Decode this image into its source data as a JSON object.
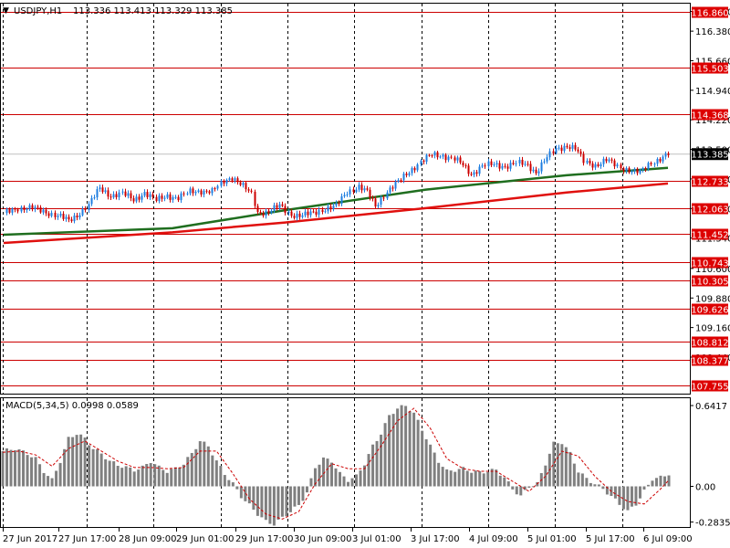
{
  "colors": {
    "background": "#ffffff",
    "frame": "#000000",
    "grid": "#000000",
    "level_line": "#cc0000",
    "level_label_bg": "#dd0000",
    "level_label_text": "#ffffff",
    "bull_candle": "#1e7ee0",
    "bear_candle": "#cc0000",
    "ma_slow": "#e0100e",
    "ma_fast": "#1f6e1f",
    "macd_bar": "#808080",
    "macd_signal": "#cc0000",
    "current_price_bg": "#000000",
    "current_price_text": "#ffffff"
  },
  "chart_data": [
    {
      "type": "candlestick",
      "title": "USDJPY,H1",
      "ohlc_header": "113.336 113.413 113.329 113.385",
      "symbol": "USDJPY",
      "timeframe": "H1",
      "current_price": "113.385",
      "ylim": [
        107.55,
        117.05
      ],
      "y_ticks": [
        "116.860",
        "116.380",
        "115.660",
        "114.940",
        "114.220",
        "113.500",
        "112.780",
        "112.060",
        "111.340",
        "110.600",
        "109.880",
        "109.160",
        "108.440"
      ],
      "price_levels": [
        "116.860",
        "115.503",
        "114.368",
        "112.733",
        "112.063",
        "111.452",
        "110.743",
        "110.305",
        "109.626",
        "108.812",
        "108.377",
        "107.755"
      ],
      "x_tick_labels": [
        "27 Jun 2017",
        "27 Jun 17:00",
        "28 Jun 09:00",
        "29 Jun 01:00",
        "29 Jun 17:00",
        "30 Jun 09:00",
        "3 Jul 01:00",
        "3 Jul 17:00",
        "4 Jul 09:00",
        "5 Jul 01:00",
        "5 Jul 17:00",
        "6 Jul 09:00"
      ],
      "close_path": [
        [
          0,
          111.95
        ],
        [
          5,
          112.08
        ],
        [
          10,
          112.06
        ],
        [
          15,
          111.98
        ],
        [
          20,
          111.86
        ],
        [
          23,
          111.75
        ],
        [
          26,
          111.9
        ],
        [
          30,
          112.15
        ],
        [
          34,
          112.55
        ],
        [
          38,
          112.38
        ],
        [
          42,
          112.42
        ],
        [
          46,
          112.27
        ],
        [
          50,
          112.45
        ],
        [
          54,
          112.25
        ],
        [
          58,
          112.38
        ],
        [
          62,
          112.32
        ],
        [
          66,
          112.46
        ],
        [
          70,
          112.5
        ],
        [
          74,
          112.47
        ],
        [
          78,
          112.72
        ],
        [
          81,
          112.84
        ],
        [
          84,
          112.66
        ],
        [
          88,
          112.4
        ],
        [
          90,
          111.97
        ],
        [
          94,
          111.98
        ],
        [
          98,
          112.12
        ],
        [
          102,
          111.92
        ],
        [
          106,
          111.88
        ],
        [
          110,
          111.95
        ],
        [
          114,
          112.06
        ],
        [
          118,
          112.11
        ],
        [
          122,
          112.47
        ],
        [
          126,
          112.6
        ],
        [
          129,
          112.45
        ],
        [
          132,
          112.12
        ],
        [
          136,
          112.48
        ],
        [
          140,
          112.7
        ],
        [
          144,
          112.97
        ],
        [
          148,
          113.2
        ],
        [
          152,
          113.36
        ],
        [
          156,
          113.36
        ],
        [
          160,
          113.26
        ],
        [
          163,
          113.11
        ],
        [
          166,
          112.9
        ],
        [
          170,
          113.1
        ],
        [
          174,
          113.12
        ],
        [
          178,
          113.1
        ],
        [
          182,
          113.16
        ],
        [
          186,
          113.11
        ],
        [
          189,
          112.95
        ],
        [
          192,
          113.22
        ],
        [
          196,
          113.5
        ],
        [
          200,
          113.6
        ],
        [
          203,
          113.52
        ],
        [
          206,
          113.2
        ],
        [
          210,
          113.12
        ],
        [
          214,
          113.24
        ],
        [
          218,
          113.08
        ],
        [
          222,
          113.01
        ],
        [
          226,
          112.93
        ],
        [
          230,
          113.18
        ],
        [
          234,
          113.32
        ],
        [
          236,
          113.385
        ]
      ],
      "moving_averages": [
        {
          "color": "ma_fast",
          "points": [
            [
              0,
              111.42
            ],
            [
              60,
              111.58
            ],
            [
              100,
              112.02
            ],
            [
              150,
              112.52
            ],
            [
              200,
              112.87
            ],
            [
              236,
              113.05
            ]
          ]
        },
        {
          "color": "ma_slow",
          "points": [
            [
              0,
              111.22
            ],
            [
              60,
              111.48
            ],
            [
              100,
              111.72
            ],
            [
              150,
              112.07
            ],
            [
              200,
              112.45
            ],
            [
              236,
              112.67
            ]
          ]
        }
      ]
    },
    {
      "type": "bar",
      "title": "MACD(5,34,5) 0.0998 0.0589",
      "ylim": [
        -0.33,
        0.7
      ],
      "y_ticks": [
        "0.6417",
        "0.00",
        "-0.2835"
      ],
      "x_tick_labels": [
        "27 Jun 2017",
        "27 Jun 17:00",
        "28 Jun 09:00",
        "29 Jun 01:00",
        "29 Jun 17:00",
        "30 Jun 09:00",
        "3 Jul 01:00",
        "3 Jul 17:00",
        "4 Jul 09:00",
        "5 Jul 01:00",
        "5 Jul 17:00",
        "6 Jul 09:00"
      ],
      "histogram_path": [
        [
          0,
          0.28
        ],
        [
          3,
          0.3
        ],
        [
          6,
          0.26
        ],
        [
          8,
          0.22
        ],
        [
          10,
          0.12
        ],
        [
          12,
          0.05
        ],
        [
          14,
          0.2
        ],
        [
          16,
          0.38
        ],
        [
          18,
          0.42
        ],
        [
          20,
          0.38
        ],
        [
          22,
          0.3
        ],
        [
          24,
          0.26
        ],
        [
          26,
          0.2
        ],
        [
          28,
          0.17
        ],
        [
          30,
          0.15
        ],
        [
          32,
          0.13
        ],
        [
          34,
          0.15
        ],
        [
          36,
          0.2
        ],
        [
          38,
          0.15
        ],
        [
          40,
          0.12
        ],
        [
          42,
          0.14
        ],
        [
          44,
          0.18
        ],
        [
          46,
          0.26
        ],
        [
          48,
          0.36
        ],
        [
          50,
          0.32
        ],
        [
          52,
          0.2
        ],
        [
          54,
          0.1
        ],
        [
          56,
          0.02
        ],
        [
          58,
          -0.08
        ],
        [
          60,
          -0.15
        ],
        [
          62,
          -0.22
        ],
        [
          64,
          -0.28
        ],
        [
          66,
          -0.3
        ],
        [
          68,
          -0.25
        ],
        [
          70,
          -0.2
        ],
        [
          72,
          -0.15
        ],
        [
          74,
          -0.05
        ],
        [
          76,
          0.15
        ],
        [
          78,
          0.22
        ],
        [
          80,
          0.2
        ],
        [
          82,
          0.1
        ],
        [
          84,
          0.05
        ],
        [
          86,
          0.08
        ],
        [
          88,
          0.18
        ],
        [
          90,
          0.32
        ],
        [
          92,
          0.42
        ],
        [
          94,
          0.56
        ],
        [
          96,
          0.62
        ],
        [
          98,
          0.64
        ],
        [
          100,
          0.58
        ],
        [
          102,
          0.45
        ],
        [
          104,
          0.32
        ],
        [
          106,
          0.2
        ],
        [
          108,
          0.12
        ],
        [
          110,
          0.13
        ],
        [
          112,
          0.14
        ],
        [
          114,
          0.12
        ],
        [
          116,
          0.11
        ],
        [
          118,
          0.12
        ],
        [
          120,
          0.13
        ],
        [
          122,
          0.07
        ],
        [
          124,
          -0.02
        ],
        [
          126,
          -0.08
        ],
        [
          128,
          0.0
        ],
        [
          130,
          0.02
        ],
        [
          132,
          0.18
        ],
        [
          134,
          0.34
        ],
        [
          136,
          0.35
        ],
        [
          138,
          0.26
        ],
        [
          140,
          0.12
        ],
        [
          142,
          0.06
        ],
        [
          144,
          0.02
        ],
        [
          146,
          -0.02
        ],
        [
          148,
          -0.08
        ],
        [
          150,
          -0.14
        ],
        [
          152,
          -0.2
        ],
        [
          154,
          -0.14
        ],
        [
          156,
          -0.04
        ],
        [
          158,
          0.06
        ],
        [
          160,
          0.07
        ],
        [
          162,
          0.1
        ]
      ],
      "signal_path": [
        [
          0,
          0.27
        ],
        [
          4,
          0.28
        ],
        [
          8,
          0.25
        ],
        [
          12,
          0.16
        ],
        [
          16,
          0.3
        ],
        [
          20,
          0.36
        ],
        [
          24,
          0.28
        ],
        [
          28,
          0.2
        ],
        [
          32,
          0.15
        ],
        [
          36,
          0.15
        ],
        [
          40,
          0.14
        ],
        [
          44,
          0.15
        ],
        [
          48,
          0.28
        ],
        [
          52,
          0.28
        ],
        [
          56,
          0.1
        ],
        [
          60,
          -0.1
        ],
        [
          64,
          -0.22
        ],
        [
          68,
          -0.26
        ],
        [
          72,
          -0.2
        ],
        [
          76,
          0.02
        ],
        [
          80,
          0.18
        ],
        [
          84,
          0.14
        ],
        [
          88,
          0.14
        ],
        [
          92,
          0.32
        ],
        [
          96,
          0.52
        ],
        [
          100,
          0.62
        ],
        [
          104,
          0.46
        ],
        [
          108,
          0.22
        ],
        [
          112,
          0.14
        ],
        [
          116,
          0.12
        ],
        [
          120,
          0.12
        ],
        [
          124,
          0.04
        ],
        [
          128,
          -0.04
        ],
        [
          132,
          0.08
        ],
        [
          136,
          0.28
        ],
        [
          140,
          0.24
        ],
        [
          144,
          0.08
        ],
        [
          148,
          -0.04
        ],
        [
          152,
          -0.12
        ],
        [
          156,
          -0.14
        ],
        [
          160,
          -0.02
        ],
        [
          162,
          0.05
        ]
      ]
    }
  ]
}
